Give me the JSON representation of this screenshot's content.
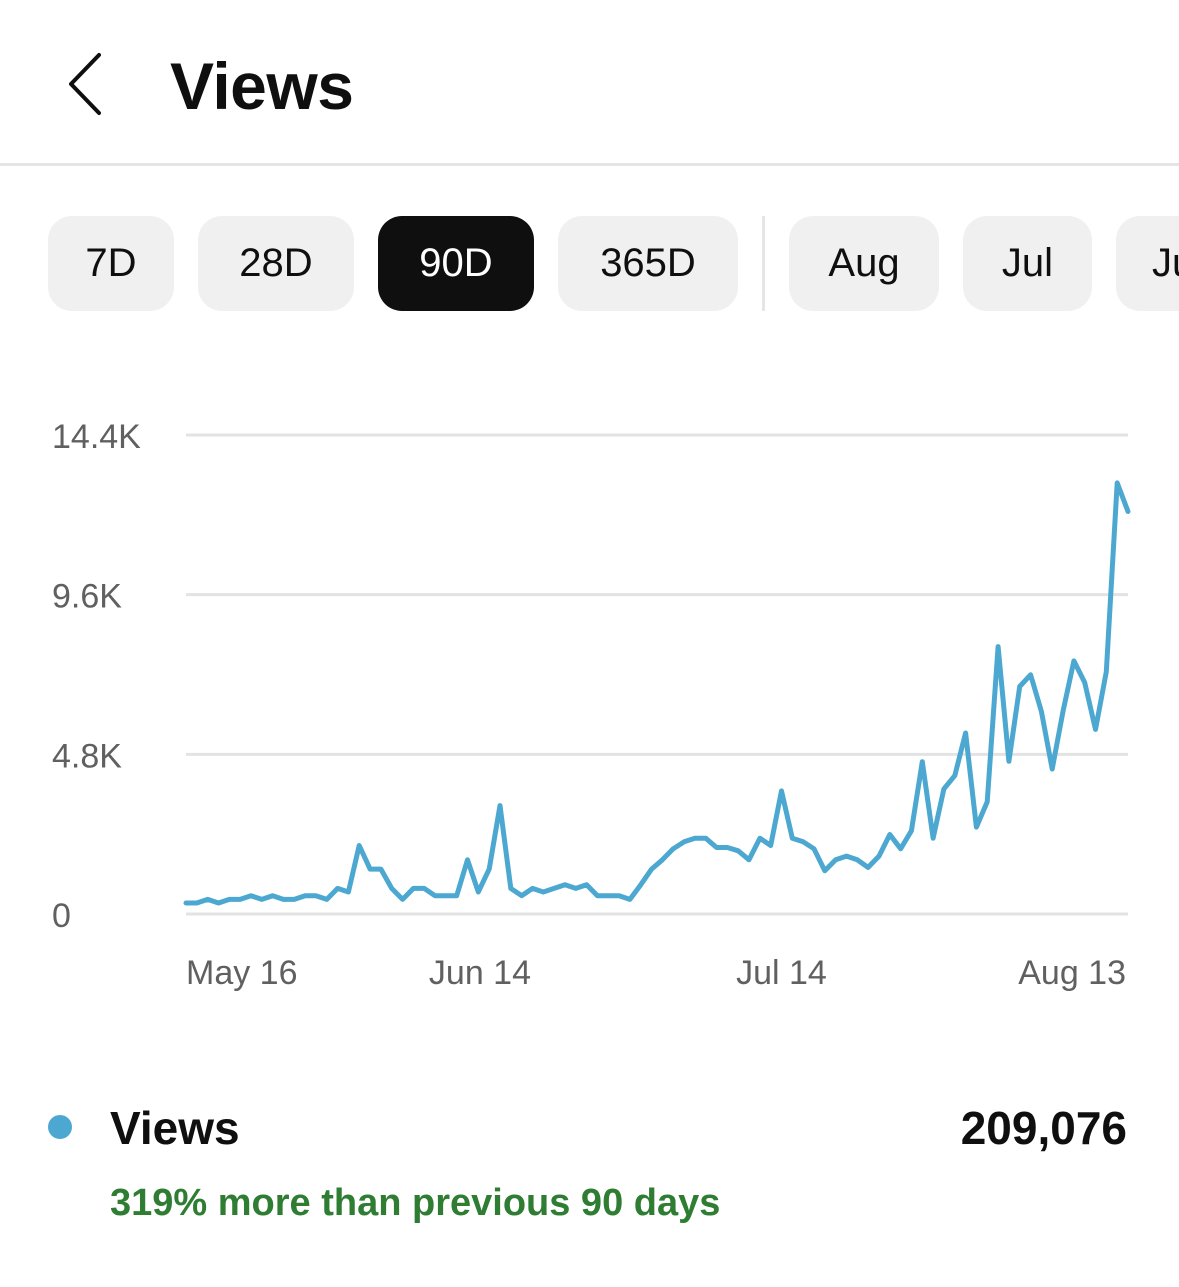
{
  "header": {
    "title": "Views",
    "back_icon": "chevron-left-icon"
  },
  "chips": [
    {
      "label": "7D",
      "selected": false
    },
    {
      "label": "28D",
      "selected": false
    },
    {
      "label": "90D",
      "selected": true
    },
    {
      "label": "365D",
      "selected": false
    },
    {
      "label": "Aug",
      "selected": false
    },
    {
      "label": "Jul",
      "selected": false
    },
    {
      "label": "Jun",
      "selected": false
    }
  ],
  "colors": {
    "line": "#4ca8d0",
    "comparison_text": "#2f7d32",
    "selected_chip": "#0f0f0f",
    "chip": "#f0f0f0"
  },
  "chart_data": {
    "type": "line",
    "title": "",
    "xlabel": "",
    "ylabel": "",
    "ylim": [
      0,
      14400
    ],
    "y_ticks": [
      {
        "value": 0,
        "label": "0"
      },
      {
        "value": 4800,
        "label": "4.8K"
      },
      {
        "value": 9600,
        "label": "9.6K"
      },
      {
        "value": 14400,
        "label": "14.4K"
      }
    ],
    "x_ticks": [
      {
        "x": "2024-05-16",
        "label": "May 16"
      },
      {
        "x": "2024-06-14",
        "label": "Jun 14"
      },
      {
        "x": "2024-07-14",
        "label": "Jul 14"
      },
      {
        "x": "2024-08-13",
        "label": "Aug 13"
      }
    ],
    "x_start": "2024-05-16",
    "x_end": "2024-08-16",
    "grid": true,
    "series": [
      {
        "name": "Views",
        "values": [
          330,
          330,
          440,
          330,
          440,
          440,
          550,
          440,
          550,
          440,
          440,
          550,
          550,
          440,
          770,
          660,
          2060,
          1350,
          1350,
          770,
          440,
          770,
          770,
          550,
          550,
          550,
          1630,
          660,
          1350,
          3260,
          770,
          550,
          770,
          660,
          770,
          880,
          770,
          880,
          550,
          550,
          550,
          440,
          880,
          1350,
          1630,
          1960,
          2170,
          2280,
          2280,
          2000,
          2000,
          1900,
          1630,
          2280,
          2060,
          3700,
          2280,
          2170,
          1960,
          1300,
          1630,
          1740,
          1630,
          1400,
          1740,
          2390,
          1960,
          2500,
          4580,
          2280,
          3760,
          4160,
          5440,
          2610,
          3370,
          8040,
          4590,
          6840,
          7190,
          6090,
          4360,
          6090,
          7610,
          6960,
          5550,
          7280,
          12960,
          12100
        ]
      }
    ],
    "legend": {
      "position": "bottom-left",
      "label": "Views",
      "total": "209,076"
    },
    "comparison": "319% more than previous 90 days"
  },
  "summary": {
    "label": "Views",
    "total": "209,076",
    "comparison": "319% more than previous 90 days"
  }
}
